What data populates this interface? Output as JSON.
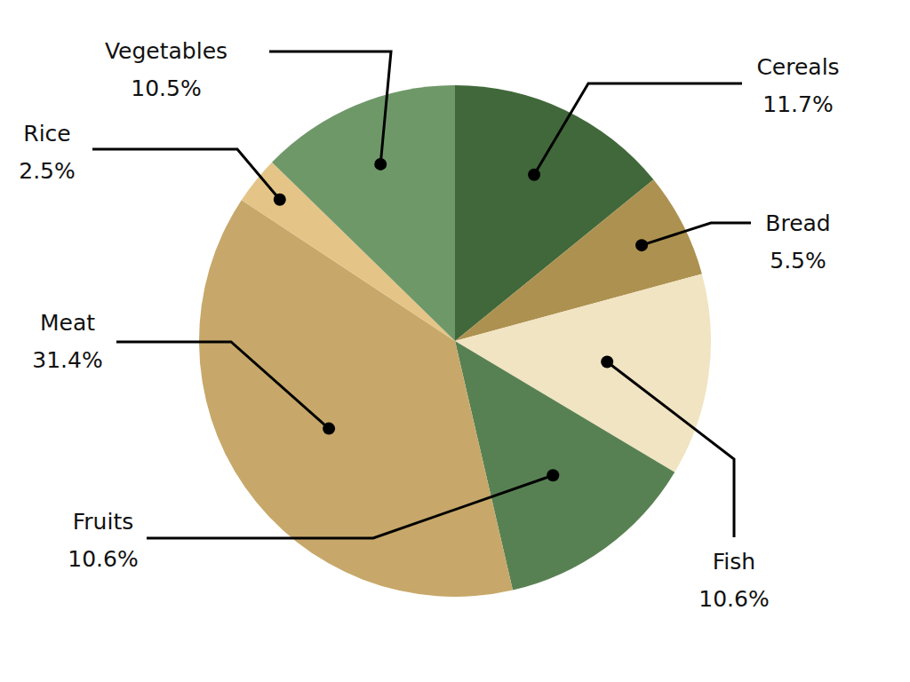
{
  "chart_data": {
    "type": "pie",
    "categories": [
      "Cereals",
      "Bread",
      "Fish",
      "Fruits",
      "Meat",
      "Rice",
      "Vegetables"
    ],
    "values": [
      11.7,
      5.5,
      10.6,
      10.6,
      31.4,
      2.5,
      10.5
    ],
    "value_labels": [
      "11.7%",
      "5.5%",
      "10.6%",
      "10.6%",
      "31.4%",
      "2.5%",
      "10.5%"
    ],
    "colors": [
      "#41683a",
      "#ad9150",
      "#f1e4c2",
      "#588153",
      "#c7a86a",
      "#e4c587",
      "#6f9869"
    ],
    "data_labels": true
  }
}
